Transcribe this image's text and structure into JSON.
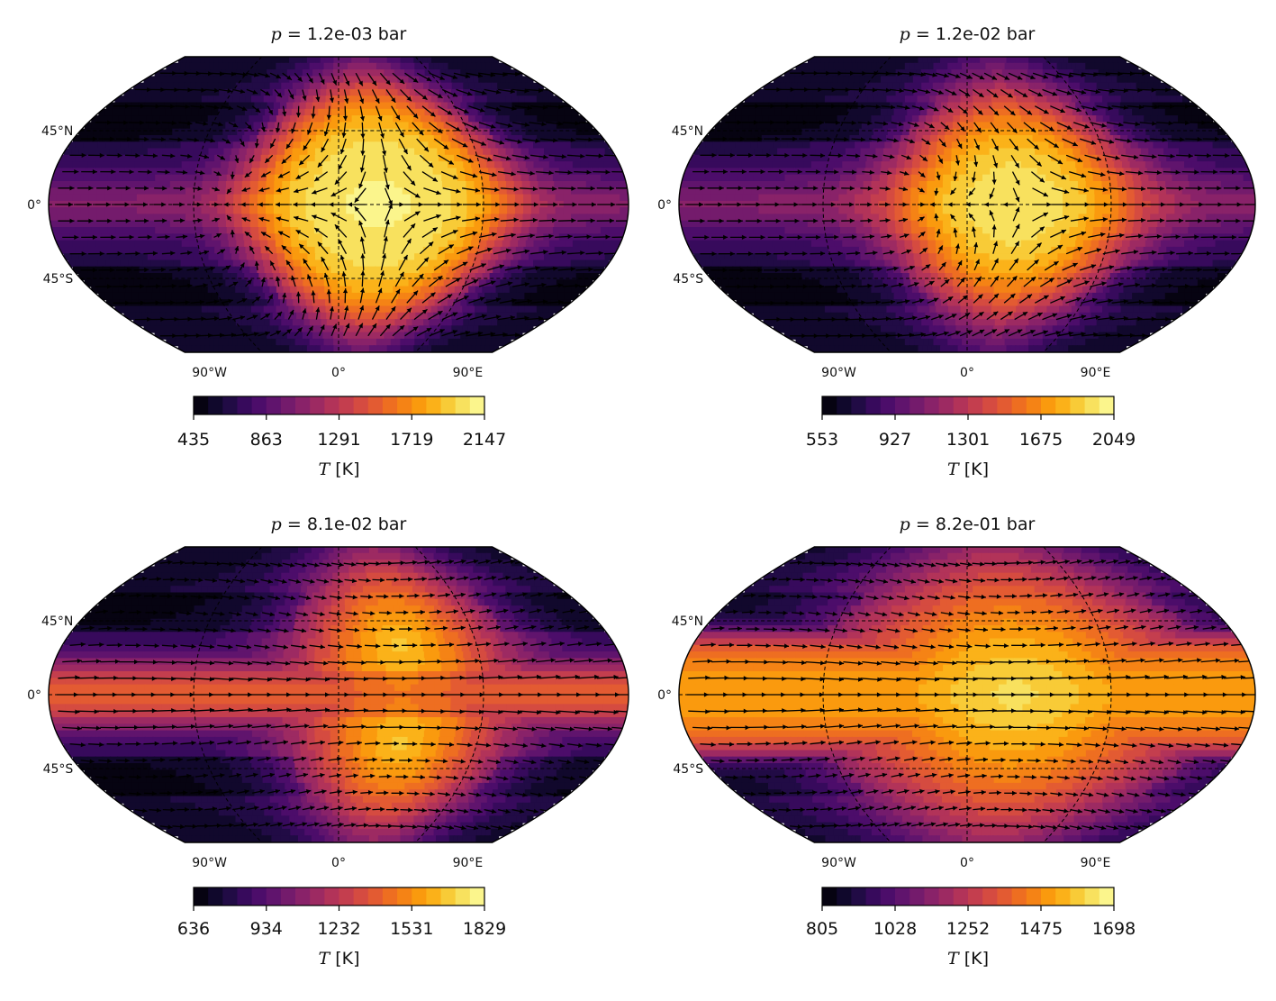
{
  "chart_data": [
    {
      "type": "heatmap",
      "title_symbol": "p",
      "title_rest": "= 1.2e-03 bar",
      "projection": "robinson",
      "lat_labels": [
        "45°N",
        "0°",
        "45°S"
      ],
      "lon_labels": [
        "90°W",
        "0°",
        "90°E"
      ],
      "colormap": "inferno",
      "colorbar": {
        "ticks": [
          "435",
          "863",
          "1291",
          "1719",
          "2147"
        ],
        "vmin": 435,
        "vmax": 2147,
        "label_symbol": "T",
        "label_unit": "[K]"
      },
      "field": {
        "hot_center_lon": 25,
        "hot_center_lat": 0,
        "hot_radius_deg": 78,
        "shape": "round",
        "edge_sharpness": 0.55
      },
      "wind": {
        "arrows": true,
        "pattern": "divergent_dayside"
      }
    },
    {
      "type": "heatmap",
      "title_symbol": "p",
      "title_rest": "= 1.2e-02 bar",
      "projection": "robinson",
      "lat_labels": [
        "45°N",
        "0°",
        "45°S"
      ],
      "lon_labels": [
        "90°W",
        "0°",
        "90°E"
      ],
      "colormap": "inferno",
      "colorbar": {
        "ticks": [
          "553",
          "927",
          "1301",
          "1675",
          "2049"
        ],
        "vmin": 553,
        "vmax": 2049,
        "label_symbol": "T",
        "label_unit": "[K]"
      },
      "field": {
        "hot_center_lon": 30,
        "hot_center_lat": 0,
        "hot_radius_deg": 70,
        "shape": "round",
        "edge_sharpness": 0.45
      },
      "wind": {
        "arrows": true,
        "pattern": "mixed"
      }
    },
    {
      "type": "heatmap",
      "title_symbol": "p",
      "title_rest": "= 8.1e-02 bar",
      "projection": "robinson",
      "lat_labels": [
        "45°N",
        "0°",
        "45°S"
      ],
      "lon_labels": [
        "90°W",
        "0°",
        "90°E"
      ],
      "colormap": "inferno",
      "colorbar": {
        "ticks": [
          "636",
          "934",
          "1232",
          "1531",
          "1829"
        ],
        "vmin": 636,
        "vmax": 1829,
        "label_symbol": "T",
        "label_unit": "[K]"
      },
      "field": {
        "hot_center_lon": 40,
        "hot_center_lat": 0,
        "hot_radius_deg": 62,
        "shape": "double_lobe",
        "edge_sharpness": 0.35
      },
      "wind": {
        "arrows": true,
        "pattern": "superrotation"
      }
    },
    {
      "type": "heatmap",
      "title_symbol": "p",
      "title_rest": "= 8.2e-01 bar",
      "projection": "robinson",
      "lat_labels": [
        "45°N",
        "0°",
        "45°S"
      ],
      "lon_labels": [
        "90°W",
        "0°",
        "90°E"
      ],
      "colormap": "inferno",
      "colorbar": {
        "ticks": [
          "805",
          "1028",
          "1252",
          "1475",
          "1698"
        ],
        "vmin": 805,
        "vmax": 1698,
        "label_symbol": "T",
        "label_unit": "[K]"
      },
      "field": {
        "hot_center_lon": 30,
        "hot_center_lat": 0,
        "hot_radius_deg": 85,
        "shape": "broad_band",
        "edge_sharpness": 0.3
      },
      "wind": {
        "arrows": true,
        "pattern": "superrotation"
      }
    }
  ]
}
